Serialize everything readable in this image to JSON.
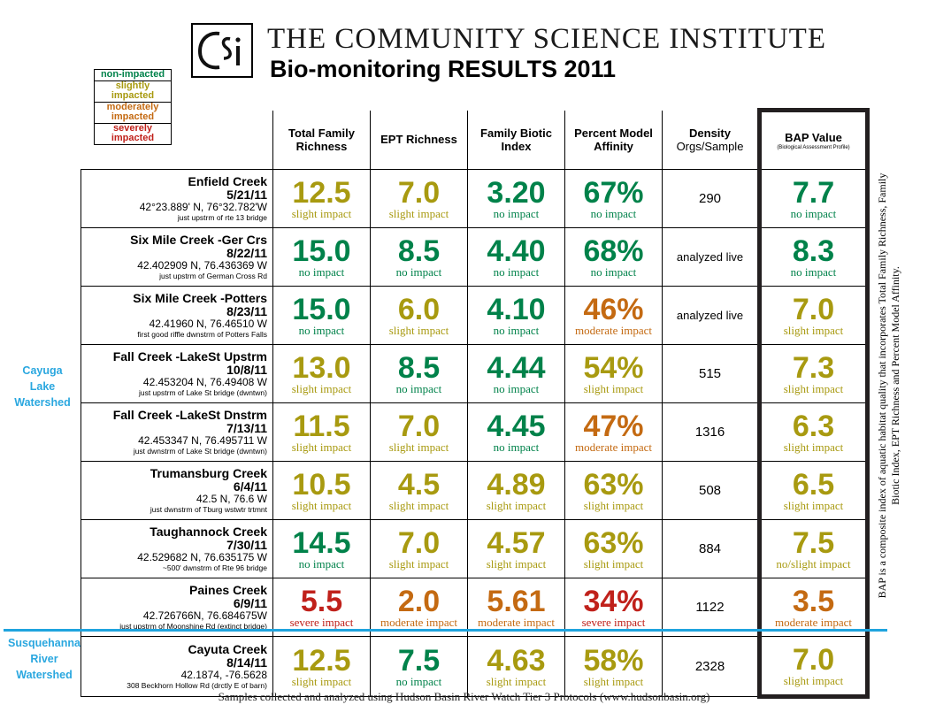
{
  "header": {
    "org": "The Community Science Institute",
    "title": "Bio-monitoring RESULTS 2011",
    "logo_text": "CSi"
  },
  "legend": [
    {
      "label": "non-impacted",
      "color": "#00824a"
    },
    {
      "label": "slightly impacted",
      "color": "#a89a10"
    },
    {
      "label": "moderately impacted",
      "color": "#c46a12"
    },
    {
      "label": "severely impacted",
      "color": "#c0211b"
    }
  ],
  "columns": {
    "richness": "Total Family Richness",
    "ept": "EPT Richness",
    "fbi": "Family Biotic Index",
    "pma": "Percent Model Affinity",
    "density": "Density",
    "density_sub": "Orgs/Sample",
    "bap": "BAP Value",
    "bap_sub": "(Biological Assessment Profile)"
  },
  "colors": {
    "none": "#00824a",
    "slight": "#a89a10",
    "moderate": "#c46a12",
    "severe": "#c0211b",
    "watershed": "#2aa7df"
  },
  "watersheds": {
    "cayuga": "Cayuga Lake Watershed",
    "susquehanna": "Susquehanna River Watershed"
  },
  "sites": [
    {
      "name": "Enfield Creek",
      "date": "5/21/11",
      "coords": "42°23.889' N, 76°32.782'W",
      "note": "just upstrm of rte 13 bridge",
      "richness": {
        "v": "12.5",
        "i": "slight impact",
        "c": "slight"
      },
      "ept": {
        "v": "7.0",
        "i": "slight impact",
        "c": "slight"
      },
      "fbi": {
        "v": "3.20",
        "i": "no impact",
        "c": "none"
      },
      "pma": {
        "v": "67%",
        "i": "no impact",
        "c": "none"
      },
      "density": "290",
      "bap": {
        "v": "7.7",
        "i": "no impact",
        "c": "none"
      }
    },
    {
      "name": "Six Mile Creek -Ger Crs",
      "date": "8/22/11",
      "coords": "42.402909 N, 76.436369 W",
      "note": "just upstrm of German Cross Rd",
      "richness": {
        "v": "15.0",
        "i": "no impact",
        "c": "none"
      },
      "ept": {
        "v": "8.5",
        "i": "no impact",
        "c": "none"
      },
      "fbi": {
        "v": "4.40",
        "i": "no impact",
        "c": "none"
      },
      "pma": {
        "v": "68%",
        "i": "no impact",
        "c": "none"
      },
      "density": "analyzed live",
      "bap": {
        "v": "8.3",
        "i": "no impact",
        "c": "none"
      }
    },
    {
      "name": "Six Mile Creek -Potters",
      "date": "8/23/11",
      "coords": "42.41960 N, 76.46510 W",
      "note": "first good riffle dwnstrm of Potters Falls",
      "richness": {
        "v": "15.0",
        "i": "no impact",
        "c": "none"
      },
      "ept": {
        "v": "6.0",
        "i": "slight impact",
        "c": "slight"
      },
      "fbi": {
        "v": "4.10",
        "i": "no impact",
        "c": "none"
      },
      "pma": {
        "v": "46%",
        "i": "moderate impact",
        "c": "moderate"
      },
      "density": "analyzed live",
      "bap": {
        "v": "7.0",
        "i": "slight impact",
        "c": "slight"
      }
    },
    {
      "name": "Fall Creek -LakeSt Upstrm",
      "date": "10/8/11",
      "coords": "42.453204 N, 76.49408 W",
      "note": "just upstrm of Lake St bridge (dwntwn)",
      "richness": {
        "v": "13.0",
        "i": "slight impact",
        "c": "slight"
      },
      "ept": {
        "v": "8.5",
        "i": "no impact",
        "c": "none"
      },
      "fbi": {
        "v": "4.44",
        "i": "no impact",
        "c": "none"
      },
      "pma": {
        "v": "54%",
        "i": "slight impact",
        "c": "slight"
      },
      "density": "515",
      "bap": {
        "v": "7.3",
        "i": "slight impact",
        "c": "slight"
      }
    },
    {
      "name": "Fall Creek -LakeSt Dnstrm",
      "date": "7/13/11",
      "coords": "42.453347 N, 76.495711 W",
      "note": "just dwnstrm of Lake St bridge (dwntwn)",
      "richness": {
        "v": "11.5",
        "i": "slight impact",
        "c": "slight"
      },
      "ept": {
        "v": "7.0",
        "i": "slight impact",
        "c": "slight"
      },
      "fbi": {
        "v": "4.45",
        "i": "no impact",
        "c": "none"
      },
      "pma": {
        "v": "47%",
        "i": "moderate impact",
        "c": "moderate"
      },
      "density": "1316",
      "bap": {
        "v": "6.3",
        "i": "slight impact",
        "c": "slight"
      }
    },
    {
      "name": "Trumansburg Creek",
      "date": "6/4/11",
      "coords": "42.5 N, 76.6 W",
      "note": "just dwnstrm of Tburg wstwtr trtmnt",
      "richness": {
        "v": "10.5",
        "i": "slight impact",
        "c": "slight"
      },
      "ept": {
        "v": "4.5",
        "i": "slight impact",
        "c": "slight"
      },
      "fbi": {
        "v": "4.89",
        "i": "slight impact",
        "c": "slight"
      },
      "pma": {
        "v": "63%",
        "i": "slight impact",
        "c": "slight"
      },
      "density": "508",
      "bap": {
        "v": "6.5",
        "i": "slight impact",
        "c": "slight"
      }
    },
    {
      "name": "Taughannock Creek",
      "date": "7/30/11",
      "coords": "42.529682 N, 76.635175 W",
      "note": "~500' dwnstrm of Rte 96 bridge",
      "richness": {
        "v": "14.5",
        "i": "no impact",
        "c": "none"
      },
      "ept": {
        "v": "7.0",
        "i": "slight impact",
        "c": "slight"
      },
      "fbi": {
        "v": "4.57",
        "i": "slight impact",
        "c": "slight"
      },
      "pma": {
        "v": "63%",
        "i": "slight impact",
        "c": "slight"
      },
      "density": "884",
      "bap": {
        "v": "7.5",
        "i": "no/slight impact",
        "c": "slight"
      }
    },
    {
      "name": "Paines Creek",
      "date": "6/9/11",
      "coords": "42.726766N, 76.684675W",
      "note": "just upstrm of Moonshine Rd (extinct bridge)",
      "richness": {
        "v": "5.5",
        "i": "severe impact",
        "c": "severe"
      },
      "ept": {
        "v": "2.0",
        "i": "moderate impact",
        "c": "moderate"
      },
      "fbi": {
        "v": "5.61",
        "i": "moderate impact",
        "c": "moderate"
      },
      "pma": {
        "v": "34%",
        "i": "severe impact",
        "c": "severe"
      },
      "density": "1122",
      "bap": {
        "v": "3.5",
        "i": "moderate impact",
        "c": "moderate"
      }
    },
    {
      "name": "Cayuta Creek",
      "date": "8/14/11",
      "coords": "42.1874, -76.5628",
      "note": "308 Beckhorn Hollow Rd (drctly E of barn)",
      "richness": {
        "v": "12.5",
        "i": "slight impact",
        "c": "slight"
      },
      "ept": {
        "v": "7.5",
        "i": "no impact",
        "c": "none"
      },
      "fbi": {
        "v": "4.63",
        "i": "slight impact",
        "c": "slight"
      },
      "pma": {
        "v": "58%",
        "i": "slight impact",
        "c": "slight"
      },
      "density": "2328",
      "bap": {
        "v": "7.0",
        "i": "slight impact",
        "c": "slight"
      }
    }
  ],
  "sidenote": "BAP is a composite index of aquatic habitat quality that incorporates Total Family Richness, Family Biotic Index, EPT Richness and Percent Model Affinity.",
  "footer": "Samples collected and analyzed using Hudson Basin River Watch Tier 3 Protocols (www.hudsonbasin.org)"
}
